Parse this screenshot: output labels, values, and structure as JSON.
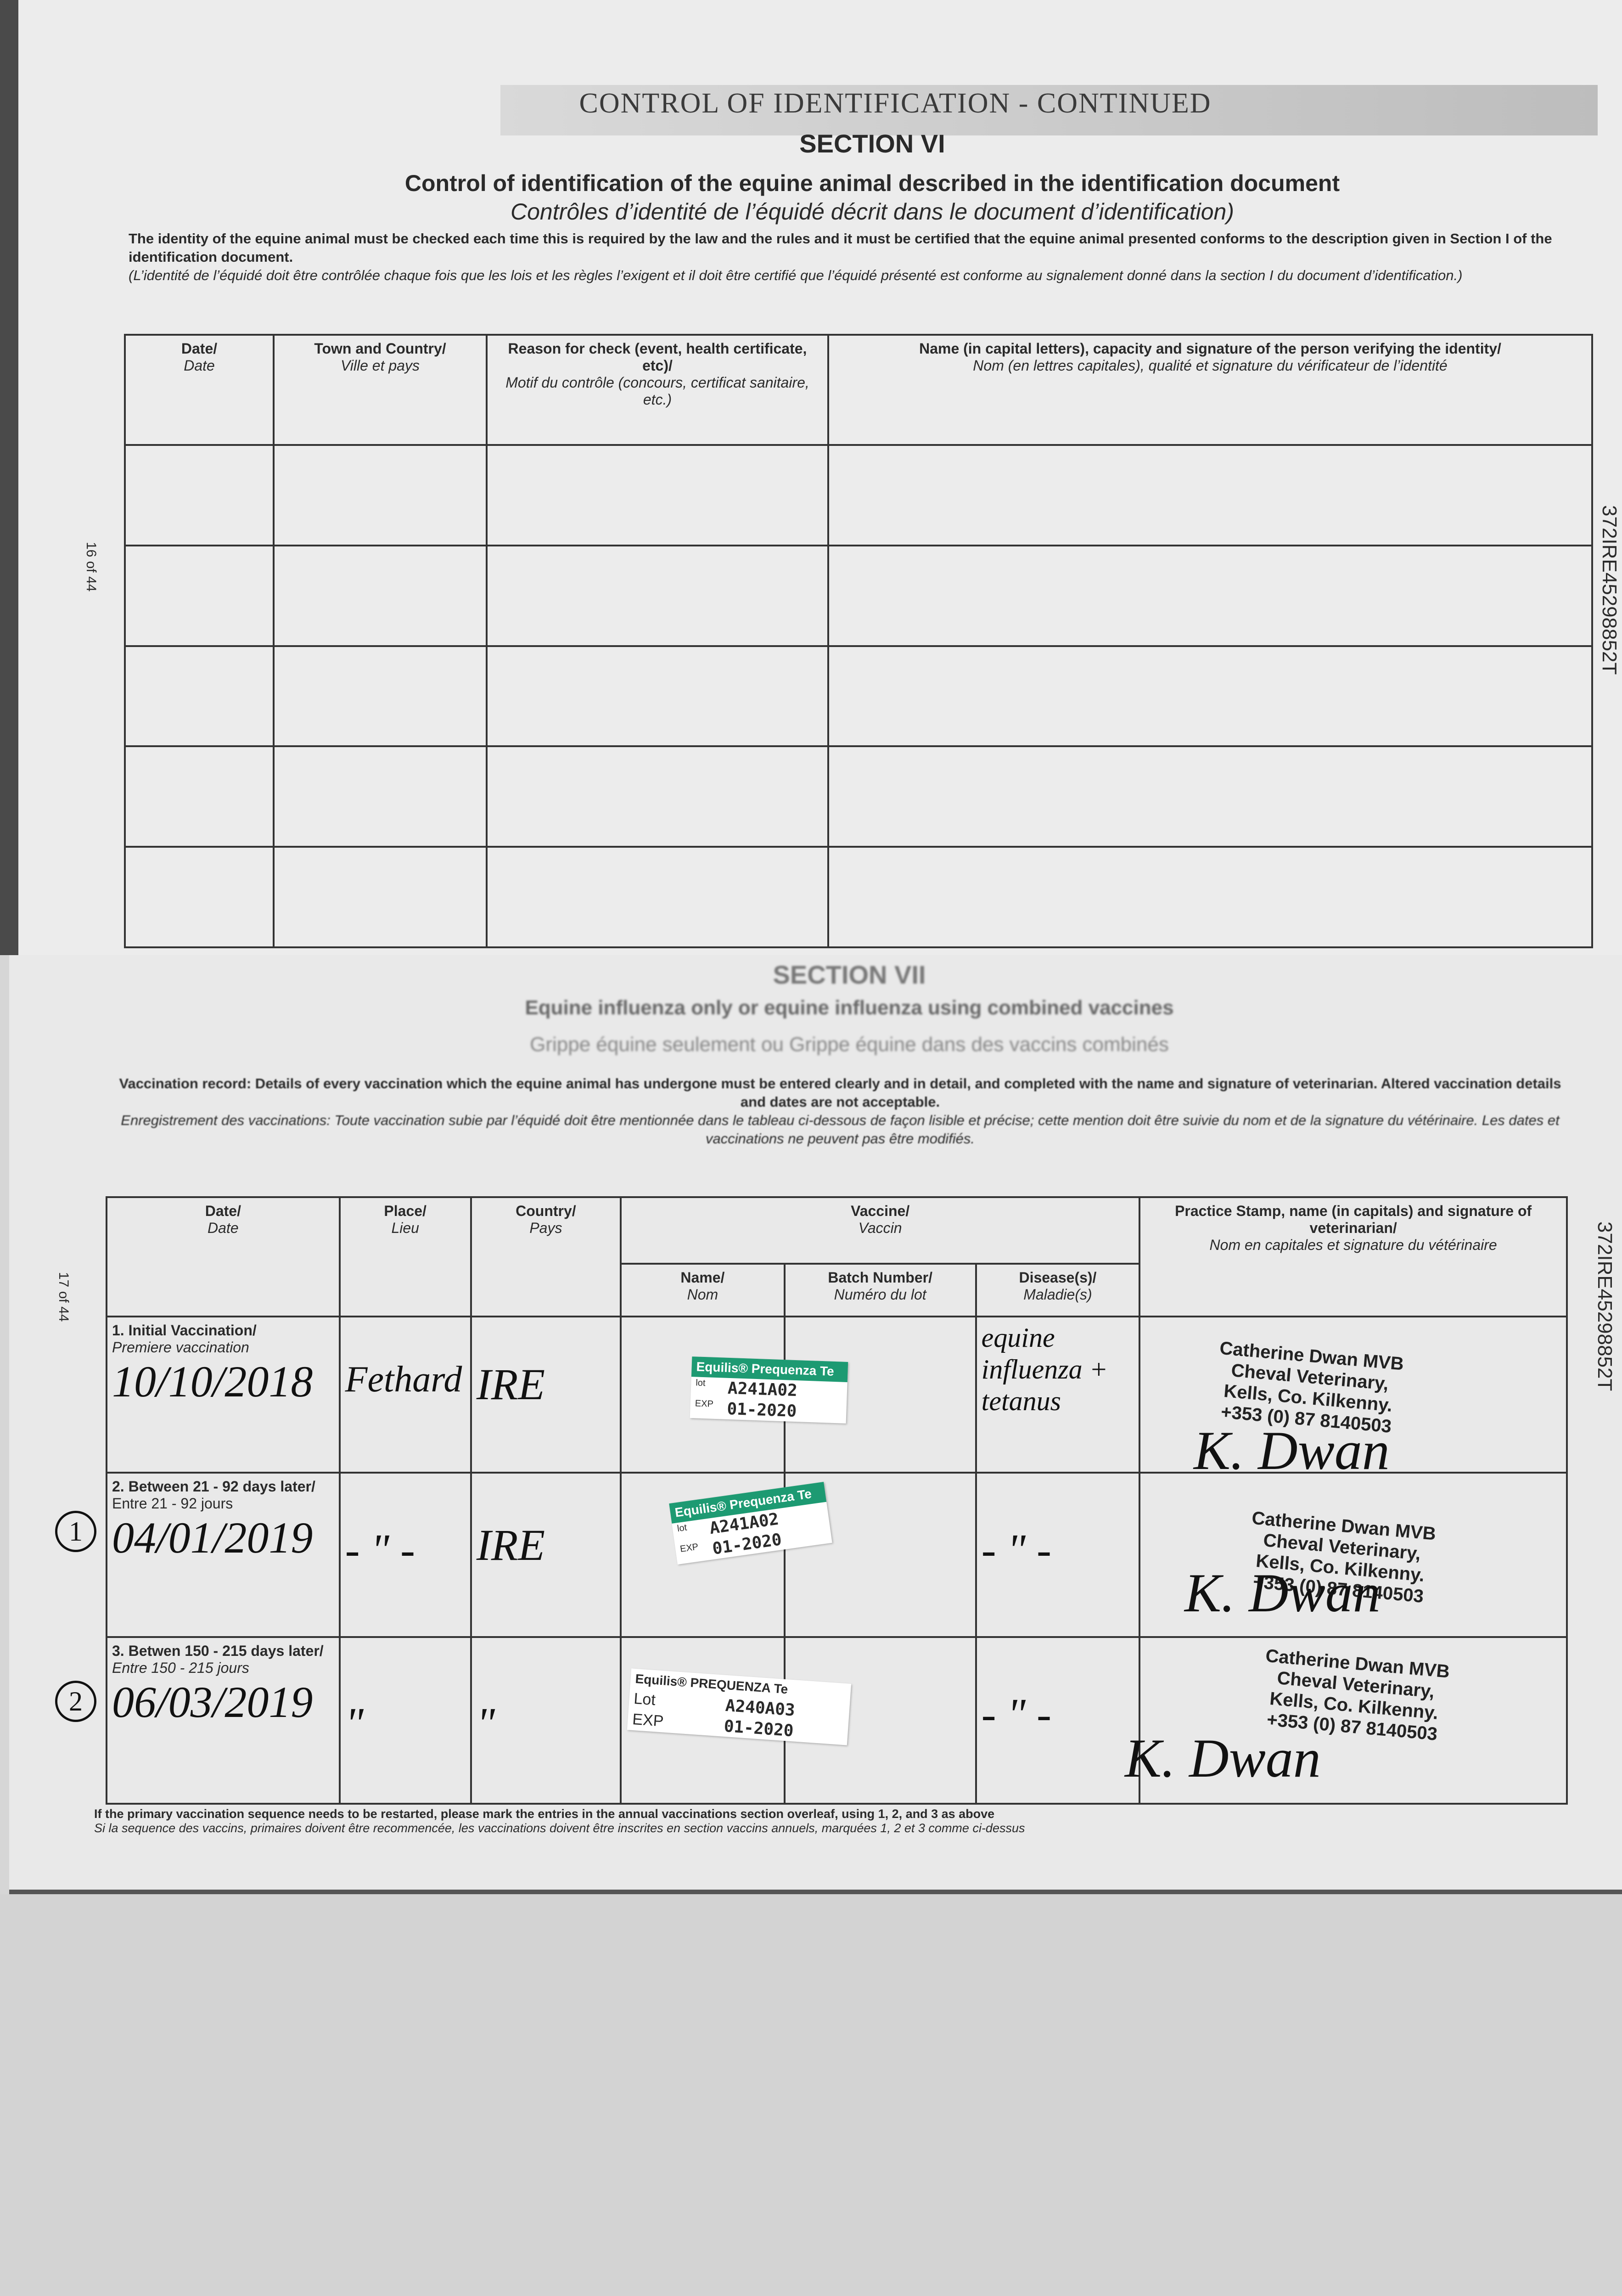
{
  "page1": {
    "banner": "CONTROL OF IDENTIFICATION - CONTINUED",
    "section": "SECTION VI",
    "title_en": "Control of identification of the equine animal described in the identification document",
    "title_fr": "Contrôles d’identité de l’équidé décrit dans le document d’identification)",
    "intro_en": "The identity of the equine animal must be checked each time this is required by the law and the rules and it must be certified that the equine animal presented conforms to the description given in Section I of the identification document.",
    "intro_fr": "(L’identité de l’équidé doit être contrôlée chaque fois que les lois et les règles l’exigent et il doit être certifié que l’équidé présenté est conforme au signalement donné dans la section I du document d’identification.)",
    "page_number": "16 of 44",
    "side_id": "372IRE45298852T",
    "columns": [
      {
        "en": "Date/",
        "fr": "Date"
      },
      {
        "en": "Town and Country/",
        "fr": "Ville et pays"
      },
      {
        "en": "Reason for check (event, health certificate, etc)/",
        "fr": "Motif du contrôle (concours, certificat sanitaire, etc.)"
      },
      {
        "en": "Name (in capital letters), capacity and signature of the person verifying the identity/",
        "fr": "Nom (en lettres capitales), qualité et signature du vérificateur de l’identité"
      }
    ]
  },
  "page2": {
    "section": "SECTION VII",
    "title_en": "Equine influenza only or equine influenza using combined vaccines",
    "title_fr": "Grippe équine seulement ou Grippe équine dans des vaccins combinés",
    "intro_en": "Vaccination record: Details of every vaccination which the equine animal has undergone must be entered clearly and in detail, and completed with the name and signature of veterinarian. Altered vaccination details and dates are not acceptable.",
    "intro_fr": "Enregistrement des vaccinations: Toute vaccination subie par l’équidé doit être mentionnée dans le tableau ci-dessous de façon lisible et précise; cette mention doit être suivie du nom et de la signature du vétérinaire. Les dates et vaccinations ne peuvent pas être modifiés.",
    "page_number": "17 of 44",
    "side_id": "372IRE45298852T",
    "headers": {
      "date": {
        "en": "Date/",
        "fr": "Date"
      },
      "place": {
        "en": "Place/",
        "fr": "Lieu"
      },
      "country": {
        "en": "Country/",
        "fr": "Pays"
      },
      "vaccine": {
        "en": "Vaccine/",
        "fr": "Vaccin"
      },
      "name": {
        "en": "Name/",
        "fr": "Nom"
      },
      "batch": {
        "en": "Batch Number/",
        "fr": "Numéro du lot"
      },
      "disease": {
        "en": "Disease(s)/",
        "fr": "Maladie(s)"
      },
      "stamp": {
        "en": "Practice Stamp, name (in capitals) and signature of veterinarian/",
        "fr": "Nom en capitales et signature du vétérinaire"
      }
    },
    "rows": [
      {
        "label_en": "1. Initial Vaccination/",
        "label_fr": "Premiere vaccination",
        "marker": "",
        "date": "10/10/2018",
        "place": "Fethard",
        "country": "IRE",
        "sticker": {
          "brand": "Equilis® Prequenza Te",
          "lot_key": "lot",
          "exp_key": "EXP",
          "lot": "A241A02",
          "exp": "01-2020"
        },
        "disease": "equine influenza + tetanus",
        "stamp": [
          "Catherine Dwan MVB",
          "Cheval Veterinary,",
          "Kells, Co. Kilkenny.",
          "+353 (0) 87 8140503"
        ],
        "signature": "K. Dwan"
      },
      {
        "label_en": "2. Between 21 - 92 days later/",
        "label_fr": "Entre 21 - 92 jours",
        "marker": "1",
        "date": "04/01/2019",
        "place": "- \" -",
        "country": "IRE",
        "sticker": {
          "brand": "Equilis® Prequenza Te",
          "lot_key": "lot",
          "exp_key": "EXP",
          "lot": "A241A02",
          "exp": "01-2020"
        },
        "disease": "- \" -",
        "stamp": [
          "Catherine Dwan MVB",
          "Cheval Veterinary,",
          "Kells, Co. Kilkenny.",
          "+353 (0) 87 8140503"
        ],
        "signature": "K. Dwan"
      },
      {
        "label_en": "3. Betwen 150 - 215 days later/",
        "label_fr": "Entre 150 - 215 jours",
        "marker": "2",
        "date": "06/03/2019",
        "place": "\"",
        "country": "\"",
        "sticker": {
          "brand": "Equilis® PREQUENZA Te",
          "lot_key": "Lot",
          "exp_key": "EXP",
          "lot": "A240A03",
          "exp": "01-2020"
        },
        "disease": "- \" -",
        "stamp": [
          "Catherine Dwan MVB",
          "Cheval Veterinary,",
          "Kells, Co. Kilkenny.",
          "+353 (0) 87 8140503"
        ],
        "signature": "K. Dwan"
      }
    ],
    "footer_en": "If the primary vaccination sequence needs to be restarted, please mark the entries in the annual vaccinations section overleaf, using 1, 2, and 3 as above",
    "footer_fr": "Si la sequence des vaccins, primaires doivent être recommencée, les vaccinations doivent être inscrites en section vaccins annuels, marquées 1, 2 et 3 comme ci-dessus"
  },
  "colors": {
    "sticker_green": "#1d9a72",
    "sticker_tab": "#e02020",
    "paper": "#ececec"
  }
}
